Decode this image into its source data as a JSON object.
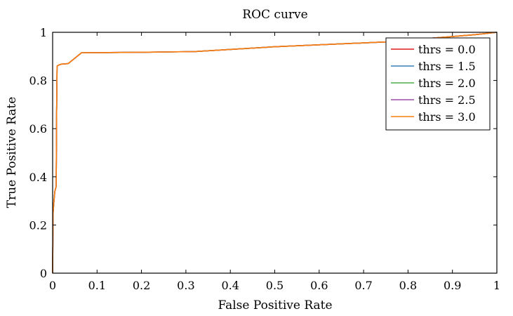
{
  "chart_data": {
    "type": "line",
    "title": "ROC curve",
    "xlabel": "False Positive Rate",
    "ylabel": "True Positive Rate",
    "xlim": [
      0,
      1
    ],
    "ylim": [
      0,
      1
    ],
    "grid": false,
    "legend_position": "top-right",
    "xticks": [
      0,
      0.1,
      0.2,
      0.3,
      0.4,
      0.5,
      0.6,
      0.7,
      0.8,
      0.9,
      1
    ],
    "xtick_labels": [
      "0",
      "0.1",
      "0.2",
      "0.3",
      "0.4",
      "0.5",
      "0.6",
      "0.7",
      "0.8",
      "0.9",
      "1"
    ],
    "yticks": [
      0,
      0.2,
      0.4,
      0.6,
      0.8,
      1
    ],
    "ytick_labels": [
      "0",
      "0.2",
      "0.4",
      "0.6",
      "0.8",
      "1"
    ],
    "series": [
      {
        "name": "thrs = 0.0",
        "color": "#e41a1c",
        "x": [
          0,
          0.001,
          0.003,
          0.005,
          0.008,
          0.009,
          0.01,
          0.012,
          0.015,
          0.02,
          0.035,
          0.065,
          0.2,
          0.32,
          0.5,
          0.75,
          0.95,
          1.0
        ],
        "y": [
          0,
          0.25,
          0.3,
          0.34,
          0.36,
          0.67,
          0.86,
          0.862,
          0.865,
          0.868,
          0.87,
          0.915,
          0.917,
          0.92,
          0.94,
          0.96,
          0.99,
          1.0
        ]
      },
      {
        "name": "thrs = 1.5",
        "color": "#377eb8",
        "x": [
          0,
          0.001,
          0.003,
          0.005,
          0.008,
          0.009,
          0.01,
          0.012,
          0.015,
          0.02,
          0.035,
          0.065,
          0.2,
          0.32,
          0.5,
          0.75,
          0.95,
          1.0
        ],
        "y": [
          0,
          0.25,
          0.3,
          0.34,
          0.36,
          0.67,
          0.86,
          0.862,
          0.865,
          0.868,
          0.87,
          0.915,
          0.917,
          0.92,
          0.94,
          0.96,
          0.99,
          1.0
        ]
      },
      {
        "name": "thrs = 2.0",
        "color": "#4daf4a",
        "x": [
          0,
          0.001,
          0.003,
          0.005,
          0.008,
          0.009,
          0.01,
          0.012,
          0.015,
          0.02,
          0.035,
          0.065,
          0.2,
          0.32,
          0.5,
          0.75,
          0.95,
          1.0
        ],
        "y": [
          0,
          0.25,
          0.3,
          0.34,
          0.36,
          0.67,
          0.86,
          0.862,
          0.865,
          0.868,
          0.87,
          0.915,
          0.917,
          0.92,
          0.94,
          0.96,
          0.99,
          1.0
        ]
      },
      {
        "name": "thrs = 2.5",
        "color": "#984ea3",
        "x": [
          0,
          0.001,
          0.003,
          0.005,
          0.008,
          0.009,
          0.01,
          0.012,
          0.015,
          0.02,
          0.035,
          0.065,
          0.2,
          0.32,
          0.5,
          0.75,
          0.95,
          1.0
        ],
        "y": [
          0,
          0.25,
          0.3,
          0.34,
          0.36,
          0.67,
          0.86,
          0.862,
          0.865,
          0.868,
          0.87,
          0.915,
          0.917,
          0.92,
          0.94,
          0.96,
          0.99,
          1.0
        ]
      },
      {
        "name": "thrs = 3.0",
        "color": "#ff7f0e",
        "x": [
          0,
          0.001,
          0.003,
          0.005,
          0.008,
          0.009,
          0.01,
          0.012,
          0.015,
          0.02,
          0.035,
          0.065,
          0.2,
          0.32,
          0.5,
          0.75,
          0.95,
          1.0
        ],
        "y": [
          0,
          0.25,
          0.3,
          0.34,
          0.36,
          0.67,
          0.86,
          0.862,
          0.865,
          0.868,
          0.87,
          0.915,
          0.917,
          0.92,
          0.94,
          0.96,
          0.99,
          1.0
        ]
      }
    ]
  }
}
